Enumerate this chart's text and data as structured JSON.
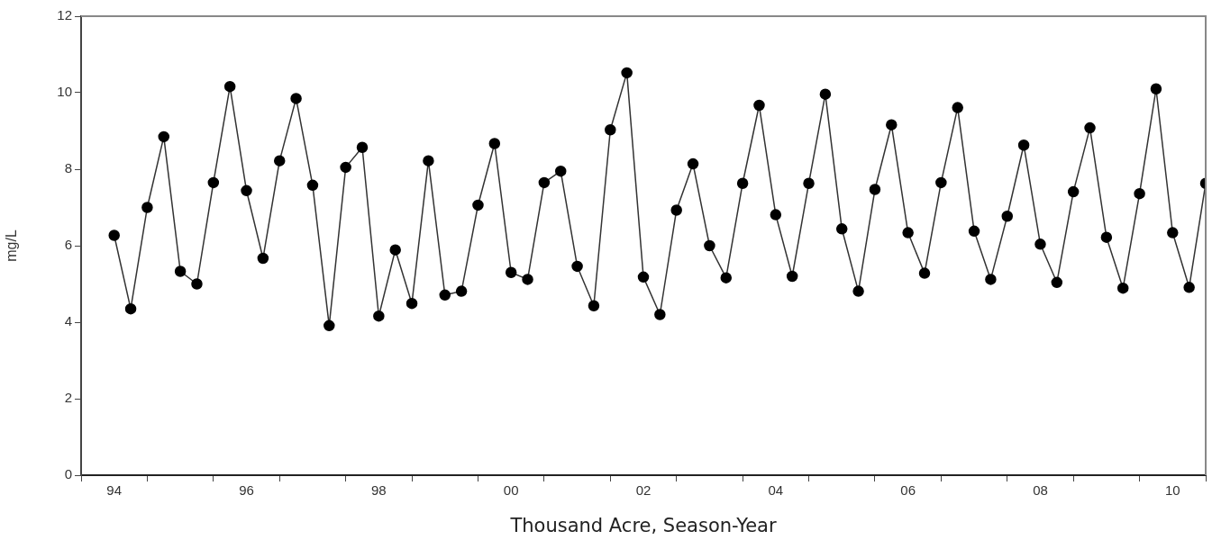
{
  "chart_data": {
    "type": "line",
    "xlabel": "Thousand Acre, Season-Year",
    "ylabel": "mg/L",
    "categories": [
      "94",
      null,
      null,
      null,
      null,
      null,
      null,
      null,
      "96",
      null,
      null,
      null,
      null,
      null,
      null,
      null,
      "98",
      null,
      null,
      null,
      null,
      null,
      null,
      null,
      "00",
      null,
      null,
      null,
      null,
      null,
      null,
      null,
      "02",
      null,
      null,
      null,
      null,
      null,
      null,
      null,
      "04",
      null,
      null,
      null,
      null,
      null,
      null,
      null,
      "06",
      null,
      null,
      null,
      null,
      null,
      null,
      null,
      "08",
      null,
      null,
      null,
      null,
      null,
      null,
      null,
      "10",
      null,
      null
    ],
    "series": [
      {
        "color": "#000000",
        "values": [
          6.27,
          4.35,
          7.0,
          8.85,
          5.33,
          5.0,
          7.65,
          10.16,
          7.44,
          5.67,
          8.22,
          9.85,
          7.58,
          3.91,
          8.05,
          8.57,
          4.16,
          5.89,
          4.49,
          8.22,
          4.71,
          4.81,
          7.06,
          8.67,
          5.3,
          5.12,
          7.65,
          7.95,
          5.46,
          4.43,
          9.03,
          10.52,
          5.18,
          4.2,
          6.93,
          8.14,
          6.0,
          5.16,
          7.63,
          9.67,
          6.81,
          5.2,
          7.63,
          9.96,
          6.44,
          4.81,
          7.47,
          9.16,
          6.34,
          5.28,
          7.65,
          9.61,
          6.38,
          5.12,
          6.77,
          8.63,
          6.04,
          5.04,
          7.41,
          9.08,
          6.22,
          4.89,
          7.36,
          10.1,
          6.34,
          4.91,
          7.63
        ]
      }
    ],
    "marker": "circle",
    "line_style": "solid",
    "ylim": [
      0,
      12
    ],
    "yticks": [
      0,
      2,
      4,
      6,
      8,
      10,
      12
    ],
    "legend": false
  }
}
